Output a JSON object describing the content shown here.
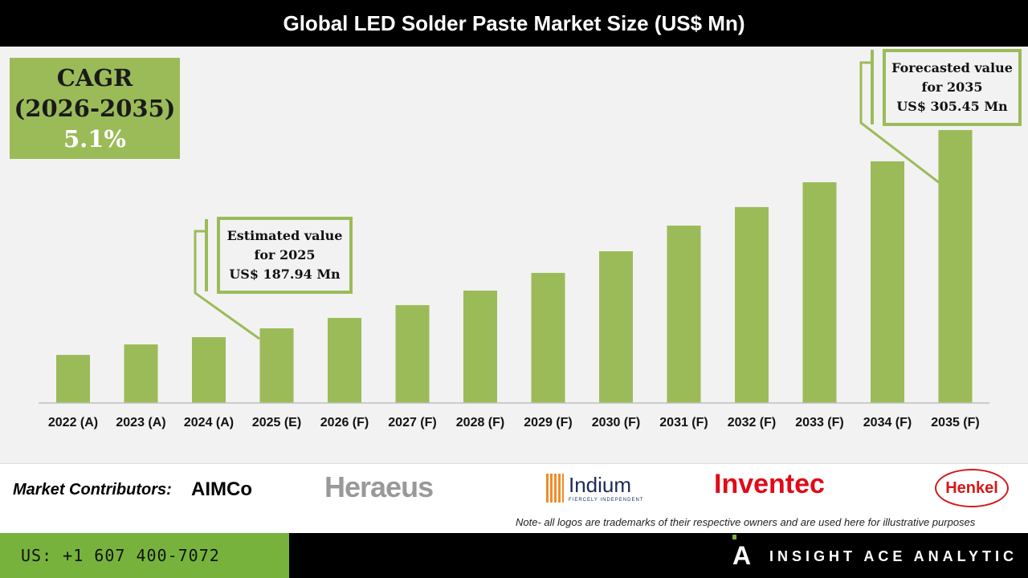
{
  "chart_data": {
    "type": "bar",
    "title": "Global LED Solder Paste Market Size (US$ Mn)",
    "categories": [
      "2022 (A)",
      "2023 (A)",
      "2024 (A)",
      "2025 (E)",
      "2026 (F)",
      "2027 (F)",
      "2028 (F)",
      "2029 (F)",
      "2030 (F)",
      "2031 (F)",
      "2032 (F)",
      "2033 (F)",
      "2034 (F)",
      "2035 (F)"
    ],
    "values": [
      172.2,
      178.4,
      182.7,
      187.94,
      194.1,
      201.7,
      210.3,
      220.8,
      233.6,
      248.8,
      259.8,
      274.5,
      286.9,
      305.45
    ],
    "bar_color": "#9bbb59",
    "grid": false,
    "annotations": {
      "cagr": {
        "label": "CAGR",
        "period": "(2026-2035)",
        "value": "5.1%"
      },
      "estimated": {
        "line1": "Estimated value",
        "line2": "for 2025",
        "line3": "US$ 187.94 Mn"
      },
      "forecast": {
        "line1": "Forecasted value",
        "line2": "for 2035",
        "line3": "US$ 305.45 Mn"
      }
    }
  },
  "footer": {
    "contributors_label": "Market Contributors:",
    "logos": [
      "AIMCo",
      "Heraeus",
      "Indium",
      "Inventec",
      "Henkel"
    ],
    "indium_tagline": "FIERCELY INDEPENDENT",
    "note": "Note- all logos are trademarks of their respective owners and are used here for illustrative purposes",
    "phone": "US: +1 607 400-7072",
    "brand": "INSIGHT ACE ANALYTIC"
  }
}
